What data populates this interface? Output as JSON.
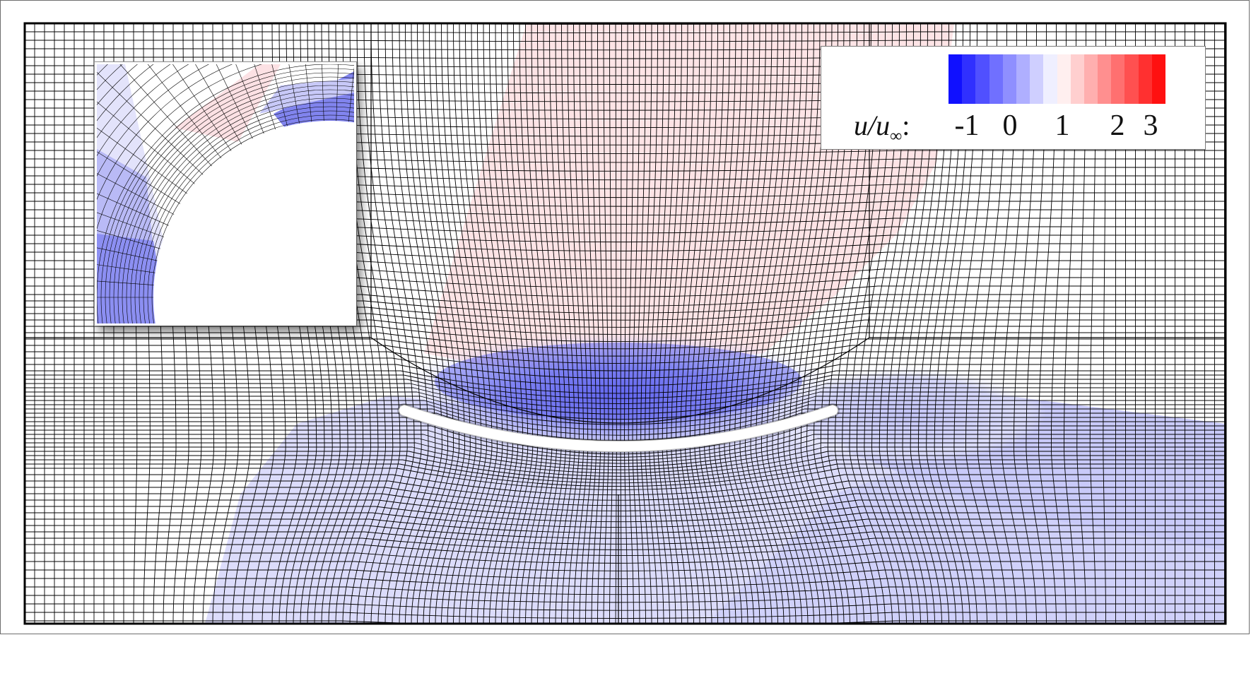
{
  "legend": {
    "variable_label": "u/u",
    "subscript": "∞",
    "suffix": ":",
    "ticks": [
      "-1",
      "0",
      "1",
      "2",
      "3"
    ],
    "range": [
      -1,
      3
    ],
    "levels": 16,
    "colors": {
      "min": "#0000ff",
      "mid": "#ffffff",
      "max": "#ff0000"
    }
  },
  "diagram": {
    "type": "curvilinear mesh with velocity contour",
    "colormap": "blue-white-red",
    "mesh_line_color": "#000000",
    "body_color": "#ffffff"
  },
  "inset": {
    "content": "zoom of mesh near curved body edge"
  }
}
